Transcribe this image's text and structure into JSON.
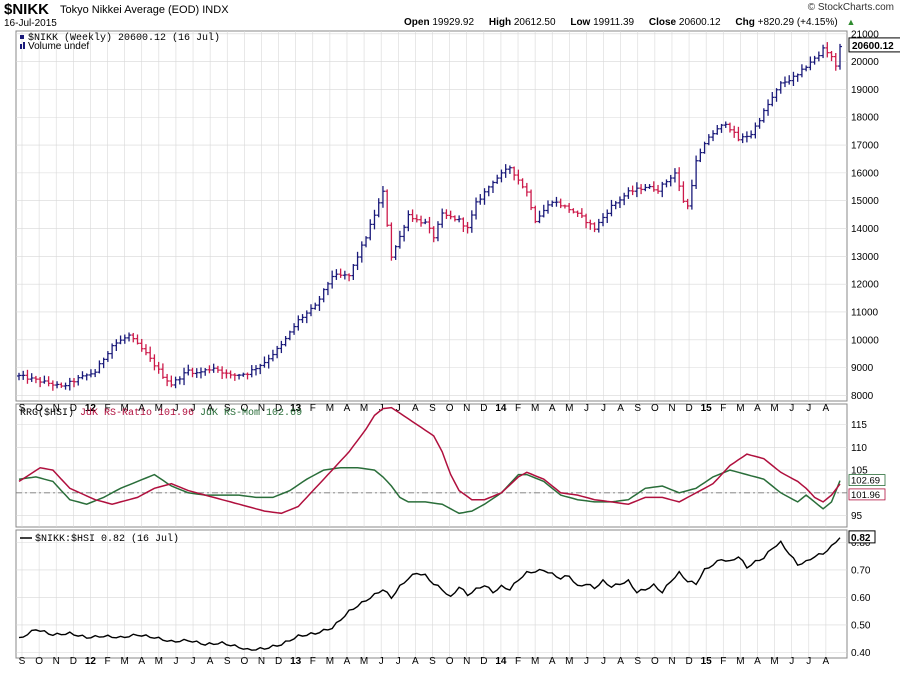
{
  "header": {
    "symbol": "$NIKK",
    "name": "Tokyo Nikkei Average (EOD)",
    "exchange": "INDX",
    "date": "16-Jul-2015",
    "brand": "© StockCharts.com",
    "open_label": "Open",
    "open": "19929.92",
    "high_label": "High",
    "high": "20612.50",
    "low_label": "Low",
    "low": "19911.39",
    "close_label": "Close",
    "close": "20600.12",
    "chg_label": "Chg",
    "chg": "+820.29 (+4.15%)"
  },
  "colors": {
    "up": "#1a1a7a",
    "down": "#cc1a4a",
    "ratio": "#b0103e",
    "mom": "#2a6e3a",
    "ratio_line": "#000000",
    "grid": "#d8d8d8"
  },
  "chart_data": [
    {
      "type": "ohlc",
      "legend": "$NIKK (Weekly) 20600.12 (16 Jul)",
      "legend2": "Volume undef",
      "last_value_label": "20600.12",
      "ylim": [
        7800,
        21100
      ],
      "y_ticks": [
        8000,
        9000,
        10000,
        11000,
        12000,
        13000,
        14000,
        15000,
        16000,
        17000,
        18000,
        19000,
        20000,
        21000
      ],
      "x_labels": [
        "S",
        "O",
        "N",
        "D",
        "12",
        "F",
        "M",
        "A",
        "M",
        "J",
        "J",
        "A",
        "S",
        "O",
        "N",
        "D",
        "13",
        "F",
        "M",
        "A",
        "M",
        "J",
        "J",
        "A",
        "S",
        "O",
        "N",
        "D",
        "14",
        "F",
        "M",
        "A",
        "M",
        "J",
        "J",
        "A",
        "S",
        "O",
        "N",
        "D",
        "15",
        "F",
        "M",
        "A",
        "M",
        "J",
        "J",
        "A"
      ],
      "close_anchors": [
        [
          0,
          8700
        ],
        [
          4,
          8550
        ],
        [
          8,
          8400
        ],
        [
          10,
          8300
        ],
        [
          14,
          8600
        ],
        [
          18,
          8850
        ],
        [
          22,
          9800
        ],
        [
          26,
          10150
        ],
        [
          30,
          9500
        ],
        [
          34,
          8700
        ],
        [
          36,
          8400
        ],
        [
          40,
          8900
        ],
        [
          42,
          8800
        ],
        [
          46,
          9000
        ],
        [
          50,
          8700
        ],
        [
          54,
          8800
        ],
        [
          58,
          9200
        ],
        [
          62,
          9800
        ],
        [
          66,
          10700
        ],
        [
          70,
          11200
        ],
        [
          74,
          12300
        ],
        [
          78,
          12300
        ],
        [
          82,
          13700
        ],
        [
          84,
          14500
        ],
        [
          86,
          15300
        ],
        [
          88,
          13000
        ],
        [
          90,
          13700
        ],
        [
          92,
          14500
        ],
        [
          94,
          14300
        ],
        [
          96,
          14200
        ],
        [
          98,
          13700
        ],
        [
          100,
          14500
        ],
        [
          104,
          14300
        ],
        [
          106,
          14000
        ],
        [
          108,
          14900
        ],
        [
          112,
          15700
        ],
        [
          116,
          16200
        ],
        [
          120,
          15300
        ],
        [
          122,
          14300
        ],
        [
          126,
          15000
        ],
        [
          130,
          14700
        ],
        [
          133,
          14400
        ],
        [
          136,
          14000
        ],
        [
          140,
          14800
        ],
        [
          144,
          15300
        ],
        [
          148,
          15500
        ],
        [
          151,
          15400
        ],
        [
          155,
          16000
        ],
        [
          157,
          15000
        ],
        [
          158,
          14800
        ],
        [
          160,
          16400
        ],
        [
          163,
          17300
        ],
        [
          167,
          17800
        ],
        [
          170,
          17200
        ],
        [
          173,
          17400
        ],
        [
          176,
          18200
        ],
        [
          180,
          19200
        ],
        [
          184,
          19500
        ],
        [
          187,
          20000
        ],
        [
          189,
          20200
        ],
        [
          190,
          20500
        ],
        [
          192,
          20200
        ],
        [
          193,
          19800
        ],
        [
          194,
          20600
        ]
      ]
    },
    {
      "type": "line",
      "legend_prefix": "RRG($HSI)",
      "series": [
        {
          "name": "JdK RS-Ratio",
          "value": "101.96",
          "label": "JdK RS-Ratio 101.96"
        },
        {
          "name": "JdK RS-Mom",
          "value": "102.69",
          "label": "JdK RS-Mom 102.69"
        }
      ],
      "ylim": [
        92.5,
        119.5
      ],
      "y_ticks": [
        95,
        100,
        105,
        110,
        115
      ],
      "baseline": 100,
      "ratio_anchors": [
        [
          0,
          102.5
        ],
        [
          5,
          105.5
        ],
        [
          8,
          105
        ],
        [
          12,
          101
        ],
        [
          18,
          98.5
        ],
        [
          22,
          97.5
        ],
        [
          28,
          99
        ],
        [
          32,
          101
        ],
        [
          36,
          102
        ],
        [
          40,
          100.5
        ],
        [
          48,
          98.5
        ],
        [
          54,
          97
        ],
        [
          58,
          96
        ],
        [
          62,
          95.5
        ],
        [
          66,
          97
        ],
        [
          70,
          101
        ],
        [
          74,
          105
        ],
        [
          78,
          109
        ],
        [
          82,
          114
        ],
        [
          84,
          117
        ],
        [
          86,
          118.5
        ],
        [
          88,
          118.7
        ],
        [
          90,
          117.5
        ],
        [
          94,
          115
        ],
        [
          98,
          112.5
        ],
        [
          100,
          109
        ],
        [
          102,
          104
        ],
        [
          104,
          100.5
        ],
        [
          107,
          98.5
        ],
        [
          110,
          98.5
        ],
        [
          114,
          100
        ],
        [
          118,
          103.5
        ],
        [
          120,
          104.5
        ],
        [
          124,
          103
        ],
        [
          128,
          100
        ],
        [
          132,
          99.5
        ],
        [
          136,
          98.5
        ],
        [
          140,
          98
        ],
        [
          144,
          97.5
        ],
        [
          148,
          99
        ],
        [
          152,
          99
        ],
        [
          156,
          98
        ],
        [
          160,
          100
        ],
        [
          164,
          102
        ],
        [
          168,
          106
        ],
        [
          172,
          108.5
        ],
        [
          176,
          107.5
        ],
        [
          180,
          104.5
        ],
        [
          184,
          102.5
        ],
        [
          186,
          101
        ],
        [
          188,
          99
        ],
        [
          190,
          98
        ],
        [
          192,
          99.5
        ],
        [
          194,
          101.96
        ]
      ],
      "mom_anchors": [
        [
          0,
          103
        ],
        [
          4,
          103.5
        ],
        [
          8,
          102.5
        ],
        [
          12,
          98.5
        ],
        [
          16,
          97.5
        ],
        [
          20,
          99
        ],
        [
          24,
          101
        ],
        [
          28,
          102.5
        ],
        [
          32,
          104
        ],
        [
          36,
          101.5
        ],
        [
          40,
          100
        ],
        [
          44,
          99.5
        ],
        [
          48,
          99.5
        ],
        [
          52,
          99.5
        ],
        [
          56,
          99
        ],
        [
          60,
          99
        ],
        [
          64,
          100.5
        ],
        [
          68,
          103
        ],
        [
          72,
          105
        ],
        [
          76,
          105.5
        ],
        [
          80,
          105.5
        ],
        [
          84,
          105
        ],
        [
          86,
          103.5
        ],
        [
          88,
          101.5
        ],
        [
          90,
          99
        ],
        [
          92,
          98
        ],
        [
          96,
          98
        ],
        [
          100,
          97.5
        ],
        [
          102,
          96.5
        ],
        [
          104,
          95.5
        ],
        [
          107,
          96
        ],
        [
          110,
          97.5
        ],
        [
          114,
          100
        ],
        [
          118,
          104
        ],
        [
          120,
          104
        ],
        [
          124,
          102.5
        ],
        [
          128,
          99.5
        ],
        [
          132,
          98.5
        ],
        [
          136,
          98
        ],
        [
          140,
          98
        ],
        [
          144,
          98.5
        ],
        [
          148,
          101
        ],
        [
          152,
          101.5
        ],
        [
          156,
          100
        ],
        [
          160,
          101
        ],
        [
          164,
          103.5
        ],
        [
          168,
          105
        ],
        [
          172,
          104
        ],
        [
          176,
          103
        ],
        [
          180,
          100
        ],
        [
          184,
          98
        ],
        [
          186,
          99.5
        ],
        [
          188,
          98
        ],
        [
          190,
          96.5
        ],
        [
          192,
          98
        ],
        [
          194,
          102.69
        ]
      ]
    },
    {
      "type": "line",
      "series": [
        {
          "name": "$NIKK:$HSI",
          "value": "0.82",
          "label": "$NIKK:$HSI 0.82 (16 Jul)"
        }
      ],
      "ylim": [
        0.38,
        0.845
      ],
      "y_ticks": [
        0.4,
        0.5,
        0.6,
        0.7,
        0.8
      ],
      "y_tick_labels": [
        "0.40",
        "0.50",
        "0.60",
        "0.70",
        "0.80"
      ],
      "last_value_label": "0.82",
      "anchors": [
        [
          0,
          0.45
        ],
        [
          4,
          0.485
        ],
        [
          8,
          0.465
        ],
        [
          12,
          0.47
        ],
        [
          16,
          0.455
        ],
        [
          20,
          0.46
        ],
        [
          24,
          0.455
        ],
        [
          28,
          0.465
        ],
        [
          32,
          0.455
        ],
        [
          36,
          0.44
        ],
        [
          40,
          0.445
        ],
        [
          44,
          0.43
        ],
        [
          48,
          0.435
        ],
        [
          52,
          0.42
        ],
        [
          54,
          0.41
        ],
        [
          58,
          0.415
        ],
        [
          62,
          0.43
        ],
        [
          66,
          0.46
        ],
        [
          70,
          0.47
        ],
        [
          74,
          0.49
        ],
        [
          78,
          0.55
        ],
        [
          82,
          0.59
        ],
        [
          86,
          0.63
        ],
        [
          88,
          0.6
        ],
        [
          90,
          0.64
        ],
        [
          92,
          0.67
        ],
        [
          94,
          0.69
        ],
        [
          96,
          0.68
        ],
        [
          98,
          0.65
        ],
        [
          100,
          0.63
        ],
        [
          102,
          0.6
        ],
        [
          104,
          0.64
        ],
        [
          106,
          0.61
        ],
        [
          108,
          0.63
        ],
        [
          110,
          0.645
        ],
        [
          112,
          0.62
        ],
        [
          114,
          0.64
        ],
        [
          116,
          0.63
        ],
        [
          118,
          0.665
        ],
        [
          120,
          0.69
        ],
        [
          124,
          0.7
        ],
        [
          126,
          0.685
        ],
        [
          128,
          0.67
        ],
        [
          130,
          0.68
        ],
        [
          132,
          0.64
        ],
        [
          134,
          0.65
        ],
        [
          136,
          0.635
        ],
        [
          138,
          0.66
        ],
        [
          140,
          0.64
        ],
        [
          142,
          0.65
        ],
        [
          144,
          0.66
        ],
        [
          146,
          0.62
        ],
        [
          148,
          0.63
        ],
        [
          150,
          0.645
        ],
        [
          152,
          0.62
        ],
        [
          154,
          0.66
        ],
        [
          156,
          0.69
        ],
        [
          158,
          0.66
        ],
        [
          160,
          0.65
        ],
        [
          162,
          0.7
        ],
        [
          164,
          0.72
        ],
        [
          166,
          0.74
        ],
        [
          168,
          0.73
        ],
        [
          170,
          0.75
        ],
        [
          172,
          0.71
        ],
        [
          174,
          0.73
        ],
        [
          176,
          0.745
        ],
        [
          178,
          0.78
        ],
        [
          180,
          0.8
        ],
        [
          182,
          0.76
        ],
        [
          184,
          0.72
        ],
        [
          186,
          0.73
        ],
        [
          188,
          0.75
        ],
        [
          190,
          0.76
        ],
        [
          192,
          0.785
        ],
        [
          194,
          0.82
        ]
      ]
    }
  ]
}
